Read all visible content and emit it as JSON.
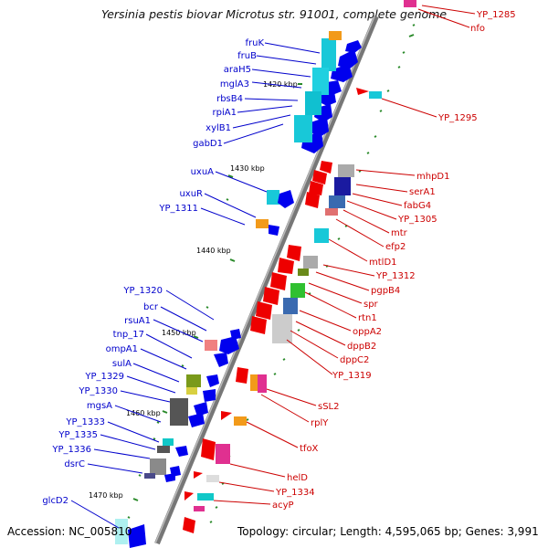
{
  "title": "Yersinia pestis biovar Microtus str. 91001, complete genome",
  "footer": {
    "accession_label": "Accession:",
    "accession": "NC_005810",
    "topology_label": "Topology:",
    "topology": "circular",
    "length_label": "Length:",
    "length": "4,595,065 bp",
    "genes_label": "Genes:",
    "genes": "3,991"
  },
  "kbp_ticks": [
    "1420 kbp",
    "1430 kbp",
    "1440 kbp",
    "1450 kbp",
    "1460 kbp",
    "1470 kbp"
  ],
  "left_genes": [
    "fruK",
    "fruB",
    "araH5",
    "mglA3",
    "rbsB4",
    "rpiA1",
    "xylB1",
    "gabD1",
    "uxuA",
    "uxuR",
    "YP_1311",
    "YP_1320",
    "bcr",
    "rsuA1",
    "tnp_17",
    "ompA1",
    "sulA",
    "YP_1329",
    "YP_1330",
    "mgsA",
    "YP_1333",
    "YP_1335",
    "YP_1336",
    "dsrC",
    "glcD2"
  ],
  "right_genes": [
    "YP_1285",
    "nfo",
    "YP_1295",
    "mhpD1",
    "serA1",
    "fabG4",
    "YP_1305",
    "mtr",
    "efp2",
    "mtlD1",
    "YP_1312",
    "pgpB4",
    "spr",
    "rtn1",
    "oppA2",
    "dppB2",
    "dppC2",
    "YP_1319",
    "sSL2",
    "rplY",
    "tfoX",
    "helD",
    "YP_1334",
    "acyP"
  ],
  "colors": {
    "left_label": "#0000cc",
    "right_label": "#cc0000",
    "backbone": "#888888",
    "tick": "#2a8a2a"
  }
}
